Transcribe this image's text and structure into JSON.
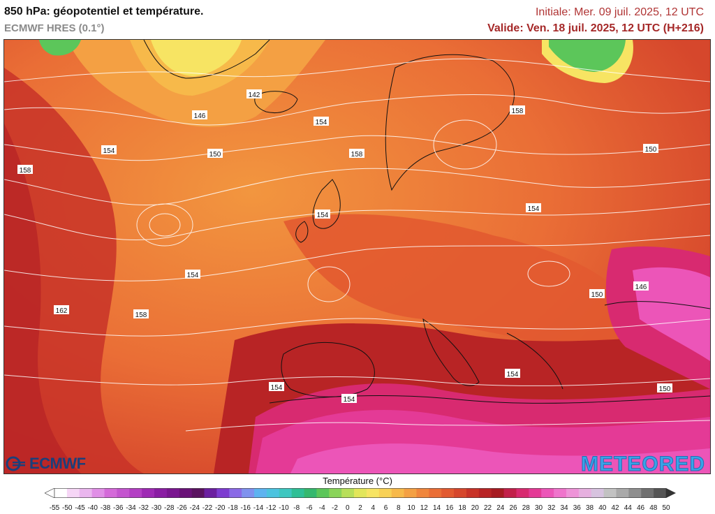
{
  "header": {
    "title": "850 hPa: géopotentiel et température.",
    "model": "ECMWF HRES (0.1°)",
    "initial": "Initiale: Mer. 09 juil. 2025, 12 UTC",
    "valid": "Valide: Ven. 18 juil. 2025, 12 UTC (H+216)"
  },
  "logos": {
    "left": "ECMWF",
    "right": "METEORED"
  },
  "legend": {
    "title": "Température (°C)",
    "ticks": [
      "-55",
      "-50",
      "-45",
      "-40",
      "-38",
      "-36",
      "-34",
      "-32",
      "-30",
      "-28",
      "-26",
      "-24",
      "-22",
      "-20",
      "-18",
      "-16",
      "-14",
      "-12",
      "-10",
      "-8",
      "-6",
      "-4",
      "-2",
      "0",
      "2",
      "4",
      "6",
      "8",
      "10",
      "12",
      "14",
      "16",
      "18",
      "20",
      "22",
      "24",
      "26",
      "28",
      "30",
      "32",
      "34",
      "36",
      "38",
      "40",
      "42",
      "44",
      "46",
      "48",
      "50"
    ],
    "colors": [
      "#ffffff",
      "#f6d6f6",
      "#eab6ee",
      "#e08fe6",
      "#d46ad9",
      "#c455cf",
      "#b33fc4",
      "#9e2ab4",
      "#8a1da3",
      "#7a1690",
      "#6a1278",
      "#5a1360",
      "#6b1fa0",
      "#7d3cd0",
      "#8a6ae6",
      "#7f92ee",
      "#5eb3f0",
      "#4cc3df",
      "#3ec7c0",
      "#2fbf96",
      "#35b86e",
      "#5cc65a",
      "#8ad45a",
      "#b8df5a",
      "#e2e65a",
      "#f7e463",
      "#f8d156",
      "#f7b94a",
      "#f4a043",
      "#f0863c",
      "#ea6e36",
      "#e25a30",
      "#d6472c",
      "#c83328",
      "#b82425",
      "#a71b22",
      "#c2204a",
      "#d82a70",
      "#e43a96",
      "#ec55b8",
      "#ef74cc",
      "#ee94d8",
      "#e6b0df",
      "#d7c3df",
      "#c2c2c2",
      "#a9a9a9",
      "#8e8e8e",
      "#707070",
      "#555555"
    ]
  },
  "contours": [
    "146",
    "142",
    "154",
    "158",
    "150",
    "154",
    "158",
    "158",
    "150",
    "154",
    "154",
    "154",
    "162",
    "158",
    "146",
    "150",
    "154",
    "154",
    "154",
    "150"
  ]
}
